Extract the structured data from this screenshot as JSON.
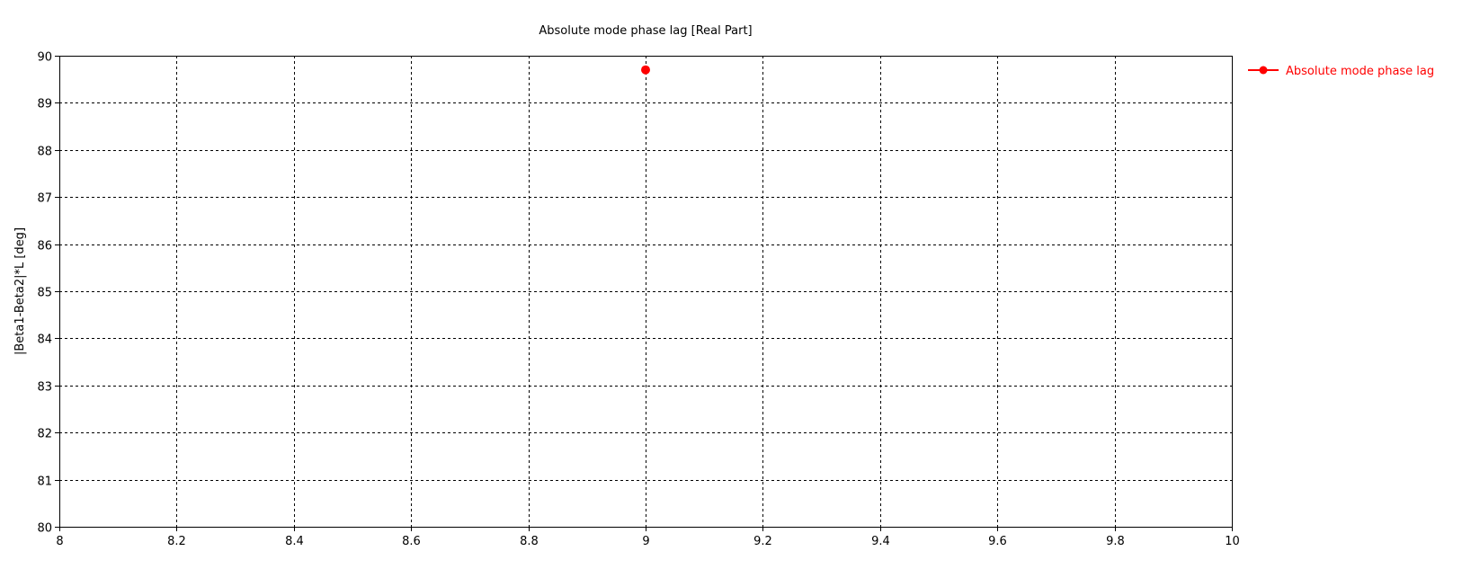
{
  "chart_data": {
    "type": "scatter",
    "title": "Absolute mode phase lag [Real Part]",
    "xlabel": "",
    "ylabel": "|Beta1-Beta2|*L [deg]",
    "xlim": [
      8,
      10
    ],
    "ylim": [
      80,
      90
    ],
    "x_ticks": [
      "8",
      "8.2",
      "8.4",
      "8.6",
      "8.8",
      "9",
      "9.2",
      "9.4",
      "9.6",
      "9.8",
      "10"
    ],
    "y_ticks": [
      "80",
      "81",
      "82",
      "83",
      "84",
      "85",
      "86",
      "87",
      "88",
      "89",
      "90"
    ],
    "grid": true,
    "grid_style": "dashed",
    "legend_position": "right-outside-top",
    "series": [
      {
        "name": "Absolute mode phase lag",
        "color": "#ff0000",
        "x": [
          9
        ],
        "y": [
          89.7
        ]
      }
    ]
  }
}
